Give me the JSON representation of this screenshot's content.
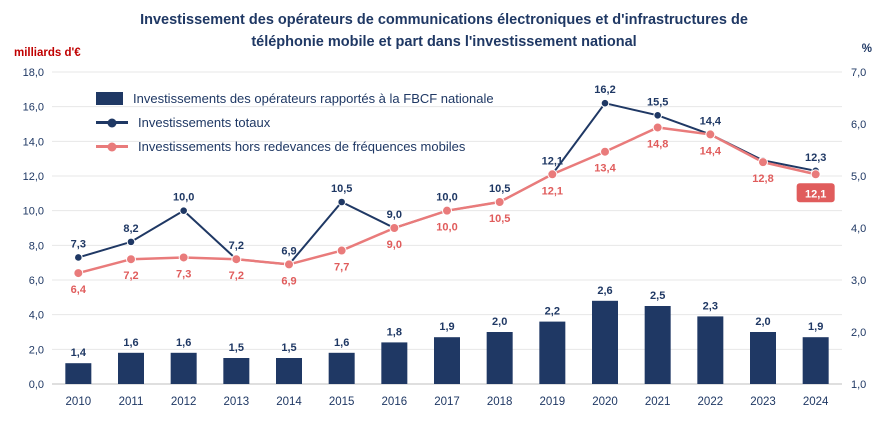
{
  "title": {
    "line1": "Investissement des opérateurs de communications électroniques et d'infrastructures de",
    "line2": "téléphonie mobile et part dans l'investissement national"
  },
  "left_axis": {
    "unit": "milliards d'€",
    "ticks": [
      "18,0",
      "16,0",
      "14,0",
      "12,0",
      "10,0",
      "8,0",
      "6,0",
      "4,0",
      "2,0",
      "0,0"
    ]
  },
  "right_axis": {
    "unit": "%",
    "ticks": [
      "7,0",
      "6,0",
      "5,0",
      "4,0",
      "3,0",
      "2,0",
      "1,0"
    ]
  },
  "legend": [
    {
      "label": "Investissements des opérateurs rapportés à la FBCF nationale",
      "symbol": "bar-swatch",
      "color": "#1F3864"
    },
    {
      "label": "Investissements totaux",
      "symbol": "line-swatch",
      "color": "#1F3864"
    },
    {
      "label": "Investissements hors redevances de fréquences mobiles",
      "symbol": "line-swatch",
      "color": "#E97B7B"
    }
  ],
  "colors": {
    "navy": "#1F3864",
    "coral": "#E97B7B",
    "red_label": "#E05C5C",
    "grid": "#E7E7E7",
    "unit_left": "#C00000",
    "background": "#FFFFFF"
  },
  "chart_data": {
    "type": "combo",
    "categories": [
      "2010",
      "2011",
      "2012",
      "2013",
      "2014",
      "2015",
      "2016",
      "2017",
      "2018",
      "2019",
      "2020",
      "2021",
      "2022",
      "2023",
      "2024"
    ],
    "left_axis_range": [
      0,
      18
    ],
    "right_axis_range": [
      1,
      7
    ],
    "left_axis_label": "milliards d'€",
    "right_axis_label": "%",
    "grid": true,
    "legend_position": "top-left",
    "series": [
      {
        "id": "fbcf-share",
        "name": "Investissements des opérateurs rapportés à la FBCF nationale",
        "type": "bar",
        "axis": "right",
        "unit": "%",
        "color": "#1F3864",
        "values": [
          1.4,
          1.6,
          1.6,
          1.5,
          1.5,
          1.6,
          1.8,
          1.9,
          2.0,
          2.2,
          2.6,
          2.5,
          2.3,
          2.0,
          1.9
        ],
        "labels": [
          "1,4",
          "1,6",
          "1,6",
          "1,5",
          "1,5",
          "1,6",
          "1,8",
          "1,9",
          "2,0",
          "2,2",
          "2,6",
          "2,5",
          "2,3",
          "2,0",
          "1,9"
        ]
      },
      {
        "id": "investissements-totaux",
        "name": "Investissements totaux",
        "type": "line",
        "axis": "left",
        "unit": "milliards d'€",
        "color": "#1F3864",
        "values": [
          7.3,
          8.2,
          10.0,
          7.2,
          6.9,
          10.5,
          9.0,
          10.0,
          10.5,
          12.1,
          16.2,
          15.5,
          14.4,
          12.9,
          12.3
        ],
        "labels": [
          "7,3",
          "8,2",
          "10,0",
          "7,2",
          "6,9",
          "10,5",
          "9,0",
          "10,0",
          "10,5",
          "12,1",
          "16,2",
          "15,5",
          "14,4",
          "",
          "12,3"
        ]
      },
      {
        "id": "hors-redevances",
        "name": "Investissements hors redevances de fréquences mobiles",
        "type": "line",
        "axis": "left",
        "unit": "milliards d'€",
        "color": "#E97B7B",
        "values": [
          6.4,
          7.2,
          7.3,
          7.2,
          6.9,
          7.7,
          9.0,
          10.0,
          10.5,
          12.1,
          13.4,
          14.8,
          14.4,
          12.8,
          12.1
        ],
        "labels": [
          "6,4",
          "7,2",
          "7,3",
          "7,2",
          "6,9",
          "7,7",
          "9,0",
          "10,0",
          "10,5",
          "12,1",
          "13,4",
          "14,8",
          "14,4",
          "12,8",
          "12,1"
        ],
        "boxed_last": true
      }
    ]
  }
}
